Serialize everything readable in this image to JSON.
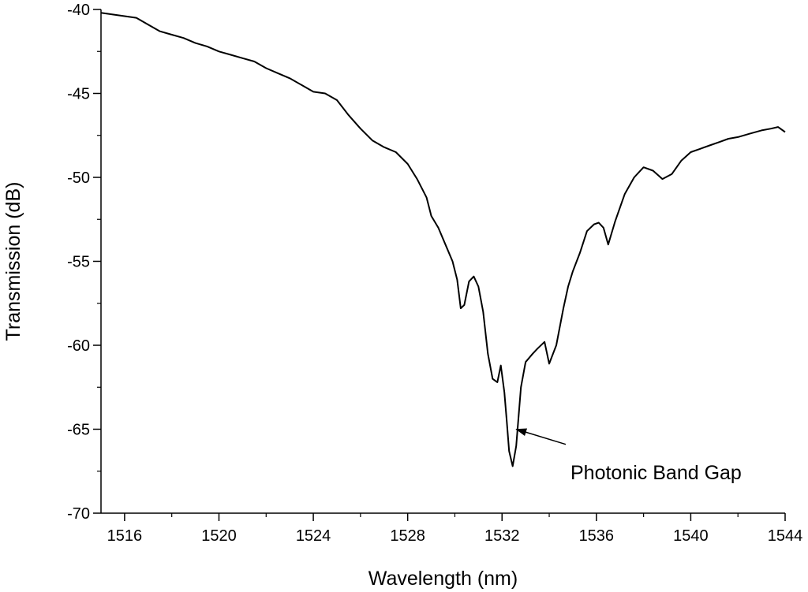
{
  "chart_data": {
    "type": "line",
    "xlabel": "Wavelength (nm)",
    "ylabel": "Transmission (dB)",
    "xlim": [
      1515,
      1544
    ],
    "ylim": [
      -70,
      -40
    ],
    "xticks": [
      1516,
      1520,
      1524,
      1528,
      1532,
      1536,
      1540,
      1544
    ],
    "yticks": [
      -40,
      -45,
      -50,
      -55,
      -60,
      -65,
      -70
    ],
    "grid": false,
    "line_color": "#000000",
    "series": [
      {
        "x": [
          1515.0,
          1515.5,
          1516.0,
          1516.5,
          1517.0,
          1517.5,
          1518.0,
          1518.5,
          1519.0,
          1519.5,
          1520.0,
          1520.5,
          1521.0,
          1521.5,
          1522.0,
          1522.5,
          1523.0,
          1523.5,
          1524.0,
          1524.5,
          1525.0,
          1525.5,
          1526.0,
          1526.5,
          1527.0,
          1527.5,
          1528.0,
          1528.4,
          1528.8,
          1529.0,
          1529.3,
          1529.6,
          1529.9,
          1530.1,
          1530.25,
          1530.4,
          1530.6,
          1530.8,
          1531.0,
          1531.2,
          1531.4,
          1531.6,
          1531.8,
          1531.95,
          1532.1,
          1532.2,
          1532.3,
          1532.45,
          1532.6,
          1532.8,
          1533.0,
          1533.3,
          1533.5,
          1533.8,
          1534.0,
          1534.3,
          1534.6,
          1534.8,
          1535.0,
          1535.3,
          1535.6,
          1535.9,
          1536.1,
          1536.3,
          1536.5,
          1536.8,
          1537.2,
          1537.6,
          1538.0,
          1538.4,
          1538.8,
          1539.2,
          1539.6,
          1540.0,
          1540.4,
          1540.8,
          1541.2,
          1541.6,
          1542.0,
          1542.5,
          1543.0,
          1543.4,
          1543.7,
          1544.0
        ],
        "y": [
          -40.2,
          -40.3,
          -40.4,
          -40.5,
          -40.9,
          -41.3,
          -41.5,
          -41.7,
          -42.0,
          -42.2,
          -42.5,
          -42.7,
          -42.9,
          -43.1,
          -43.5,
          -43.8,
          -44.1,
          -44.5,
          -44.9,
          -45.0,
          -45.4,
          -46.3,
          -47.1,
          -47.8,
          -48.2,
          -48.5,
          -49.2,
          -50.1,
          -51.2,
          -52.3,
          -53.0,
          -54.0,
          -55.0,
          -56.1,
          -57.8,
          -57.6,
          -56.2,
          -55.9,
          -56.5,
          -58.0,
          -60.5,
          -62.0,
          -62.2,
          -61.2,
          -62.8,
          -64.5,
          -66.3,
          -67.2,
          -66.0,
          -62.5,
          -61.0,
          -60.5,
          -60.2,
          -59.8,
          -61.1,
          -60.0,
          -57.8,
          -56.5,
          -55.6,
          -54.5,
          -53.2,
          -52.8,
          -52.7,
          -53.0,
          -54.0,
          -52.6,
          -51.0,
          -50.0,
          -49.4,
          -49.6,
          -50.1,
          -49.8,
          -49.0,
          -48.5,
          -48.3,
          -48.1,
          -47.9,
          -47.7,
          -47.6,
          -47.4,
          -47.2,
          -47.1,
          -47.0,
          -47.3
        ]
      }
    ],
    "annotations": [
      {
        "text": "Photonic Band Gap",
        "arrow_from": [
          1534.7,
          -65.9
        ],
        "arrow_to": [
          1532.6,
          -65.0
        ]
      }
    ]
  }
}
